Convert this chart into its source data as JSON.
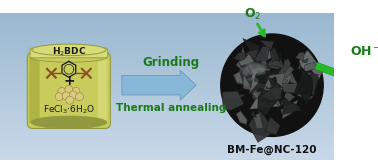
{
  "bg_grad_top": "#c8d8e8",
  "bg_grad_bot": "#9ab8d0",
  "jar_body": "#c8cc5a",
  "jar_top": "#d8dc78",
  "jar_dark": "#909840",
  "jar_rim": "#b0b448",
  "jar_shadow": "#a0a438",
  "mol_ring": "#1a1a1a",
  "mol_arm": "#8B5020",
  "mol_arm2": "#7a3a10",
  "particle_fill": "#d8cc80",
  "particle_edge": "#a09038",
  "arrow_fill": "#88b8d8",
  "arrow_edge": "#6898b8",
  "text_green": "#1a7a1a",
  "grinding_text": "Grinding",
  "annealing_text": "Thermal annealing",
  "o2_text": "O$_2$",
  "oh_text": "OH$^-$",
  "label_text": "BM-Fe@NC-120",
  "h2bdc_text": "H$_2$BDC",
  "fecl3_text": "FeCl$_3$$\\cdot$6H$_2$O",
  "plus_text": "+",
  "green_arrow": "#28b828",
  "sphere_base": "#1a1a1a"
}
